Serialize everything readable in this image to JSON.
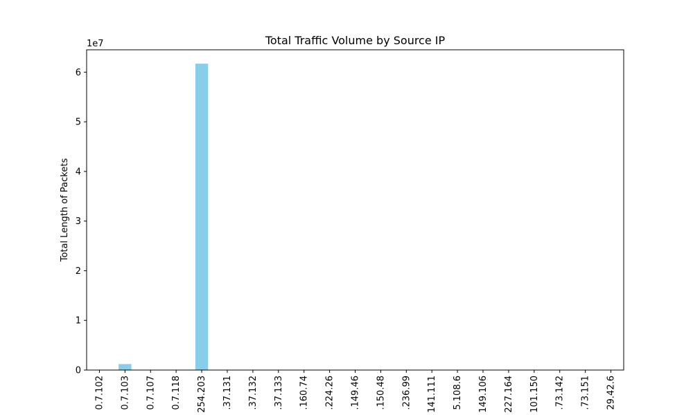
{
  "chart_data": {
    "type": "bar",
    "title": "Total Traffic Volume by Source IP",
    "xlabel": "",
    "ylabel": "Total Length of Packets",
    "y_scale_label": "1e7",
    "ylim": [
      0,
      64500000
    ],
    "yticks": [
      0,
      10000000,
      20000000,
      30000000,
      40000000,
      50000000,
      60000000
    ],
    "ytick_labels": [
      "0",
      "1",
      "2",
      "3",
      "4",
      "5",
      "6"
    ],
    "categories": [
      "0.7.102",
      "0.7.103",
      "0.7.107",
      "0.7.118",
      "254.203",
      ".37.131",
      ".37.132",
      ".37.133",
      ".160.74",
      ".224.26",
      ".149.46",
      ".150.48",
      ".236.99",
      "141.111",
      "5.108.6",
      "149.106",
      "227.164",
      "101.150",
      ".73.142",
      ".73.151",
      "29.42.6"
    ],
    "values": [
      0,
      1200000,
      0,
      0,
      61700000,
      0,
      0,
      0,
      0,
      0,
      0,
      0,
      0,
      0,
      0,
      0,
      0,
      0,
      0,
      0,
      0
    ],
    "bar_color": "#87ceeb",
    "grid": false,
    "legend": "none"
  }
}
